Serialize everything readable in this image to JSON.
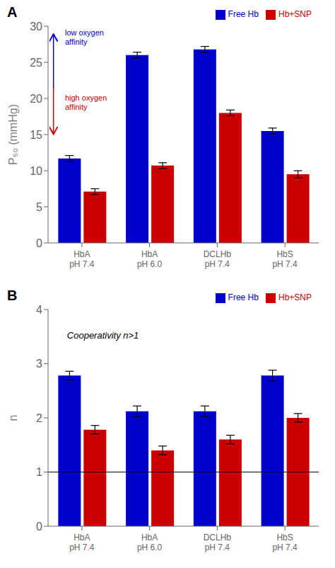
{
  "chart_data": [
    {
      "type": "bar",
      "title": "A",
      "categories": [
        "HbA\npH 7.4",
        "HbA\npH 6.0",
        "DCLHb\npH 7.4",
        "HbS\npH 7.4"
      ],
      "series": [
        {
          "name": "Free Hb",
          "color": "#0000CC",
          "values": [
            11.7,
            26.0,
            26.8,
            15.5
          ],
          "errors": [
            0.4,
            0.4,
            0.4,
            0.4
          ]
        },
        {
          "name": "Hb+SNP",
          "color": "#CC0000",
          "values": [
            7.1,
            10.7,
            18.0,
            9.5
          ],
          "errors": [
            0.4,
            0.4,
            0.4,
            0.5
          ]
        }
      ],
      "ylabel": "P₅₀ (mmHg)",
      "ylim": [
        0,
        30
      ],
      "yticks": [
        0,
        5,
        10,
        15,
        20,
        25,
        30
      ],
      "grid": false,
      "legend": "upper right",
      "annotations": [
        {
          "text": "low oxygen\naffinity",
          "color": "#0000CC"
        },
        {
          "text": "high oxygen\naffinity",
          "color": "#CC0000"
        }
      ]
    },
    {
      "type": "bar",
      "title": "B",
      "categories": [
        "HbA\npH 7.4",
        "HbA\npH 6.0",
        "DCLHb\npH 7.4",
        "HbS\npH 7.4"
      ],
      "series": [
        {
          "name": "Free Hb",
          "color": "#0000CC",
          "values": [
            2.78,
            2.12,
            2.12,
            2.78
          ],
          "errors": [
            0.08,
            0.1,
            0.1,
            0.1
          ]
        },
        {
          "name": "Hb+SNP",
          "color": "#CC0000",
          "values": [
            1.78,
            1.4,
            1.6,
            2.0
          ],
          "errors": [
            0.08,
            0.08,
            0.08,
            0.08
          ]
        }
      ],
      "ylabel": "n",
      "ylim": [
        0,
        4
      ],
      "yticks": [
        0,
        1,
        2,
        3,
        4
      ],
      "grid": false,
      "legend": "upper right",
      "reference_line_y": 1.0,
      "annotations": [
        {
          "text": "Cooperativity n>1"
        }
      ]
    }
  ]
}
